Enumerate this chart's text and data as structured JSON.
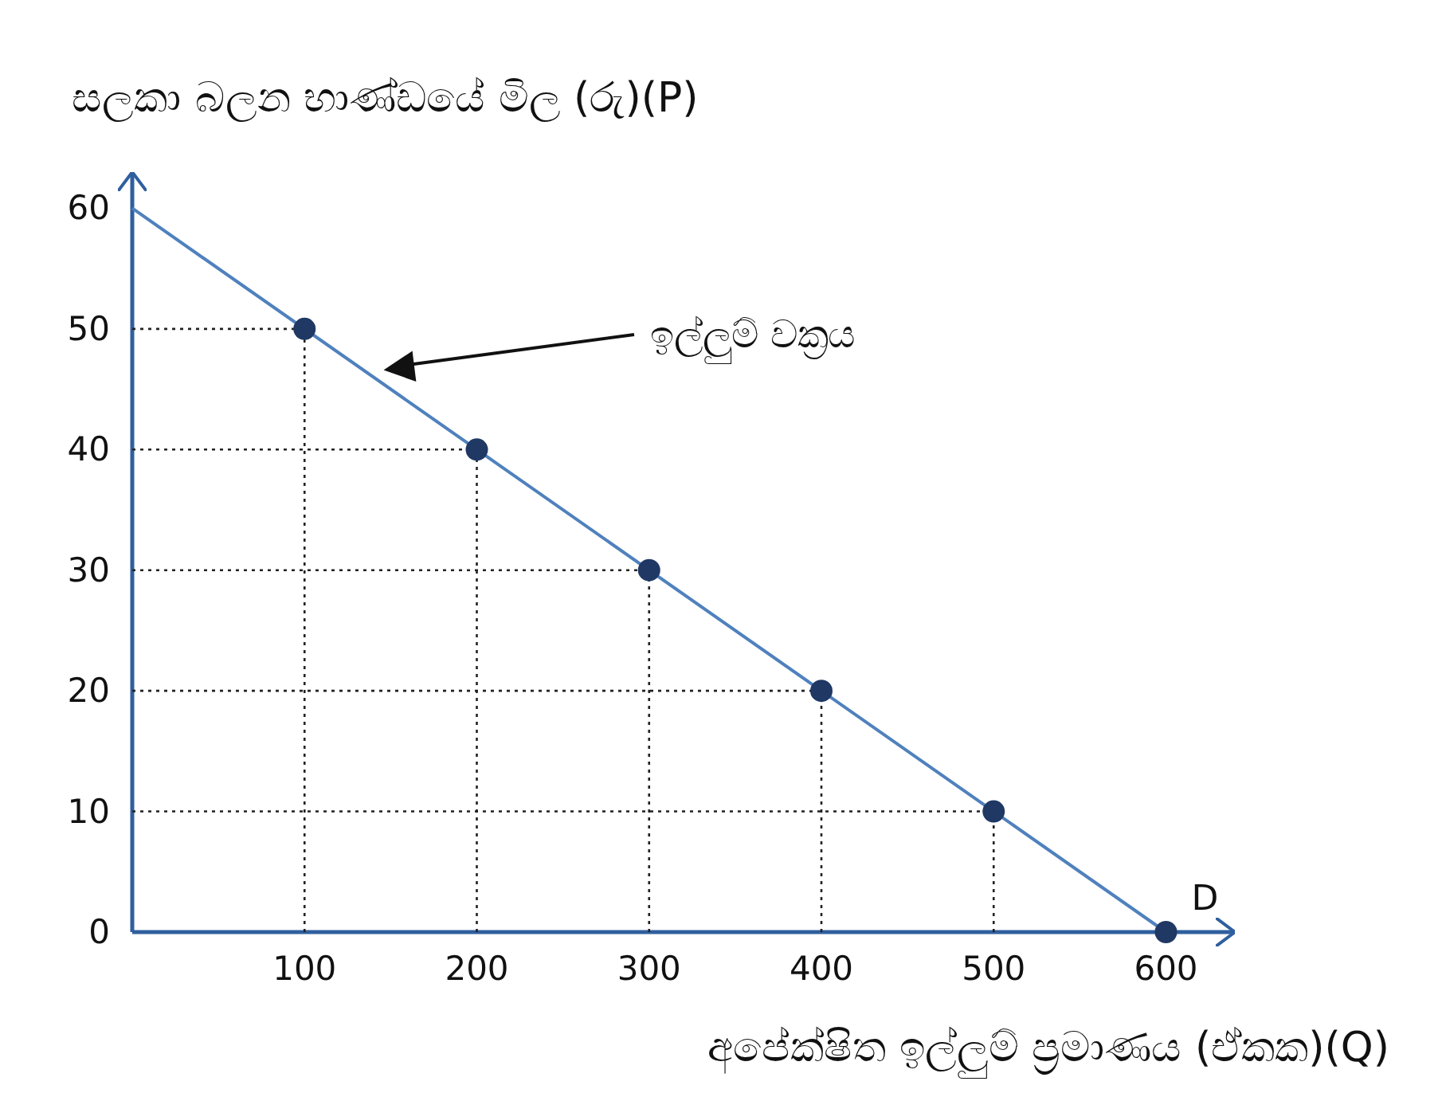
{
  "chart_data": {
    "type": "line",
    "ylabel": "සලකා බලන භාණ්ඩයේ මිල (රු)(P)",
    "xlabel": "අපේක්ෂිත ඉල්ලුම් ප්‍රමාණය (ඒකක)(Q)",
    "xlim": [
      0,
      640
    ],
    "ylim": [
      0,
      63
    ],
    "xticks": [
      100,
      200,
      300,
      400,
      500,
      600
    ],
    "yticks": [
      0,
      10,
      20,
      30,
      40,
      50,
      60
    ],
    "series": [
      {
        "color": "#4f81bd",
        "marker": "none",
        "x": [
          0,
          600
        ],
        "values": [
          60,
          0
        ]
      },
      {
        "type": "scatter",
        "color": "#1f3864",
        "x": [
          100,
          200,
          300,
          400,
          500,
          600
        ],
        "values": [
          50,
          40,
          30,
          20,
          10,
          0
        ]
      }
    ],
    "ref_lines": [
      {
        "axis": "x",
        "value": 100,
        "color": "#222222",
        "line_style": "dotted"
      },
      {
        "axis": "x",
        "value": 200,
        "color": "#222222",
        "line_style": "dotted"
      },
      {
        "axis": "x",
        "value": 300,
        "color": "#222222",
        "line_style": "dotted"
      },
      {
        "axis": "x",
        "value": 400,
        "color": "#222222",
        "line_style": "dotted"
      },
      {
        "axis": "x",
        "value": 500,
        "color": "#222222",
        "line_style": "dotted"
      },
      {
        "axis": "y",
        "value": 50,
        "color": "#222222",
        "line_style": "dotted"
      },
      {
        "axis": "y",
        "value": 40,
        "color": "#222222",
        "line_style": "dotted"
      },
      {
        "axis": "y",
        "value": 30,
        "color": "#222222",
        "line_style": "dotted"
      },
      {
        "axis": "y",
        "value": 20,
        "color": "#222222",
        "line_style": "dotted"
      },
      {
        "axis": "y",
        "value": 10,
        "color": "#222222",
        "line_style": "dotted"
      }
    ],
    "annotations": [
      "ඉල්ලුම් වක්‍රය",
      {
        "text": "D",
        "x": 600,
        "y": 0
      }
    ]
  }
}
